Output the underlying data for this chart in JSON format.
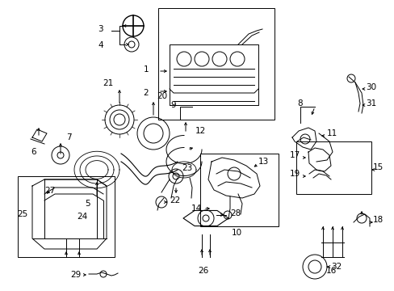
{
  "bg_color": "#ffffff",
  "fig_width": 4.89,
  "fig_height": 3.6,
  "dpi": 100,
  "lw": 0.7,
  "fs": 7.5
}
